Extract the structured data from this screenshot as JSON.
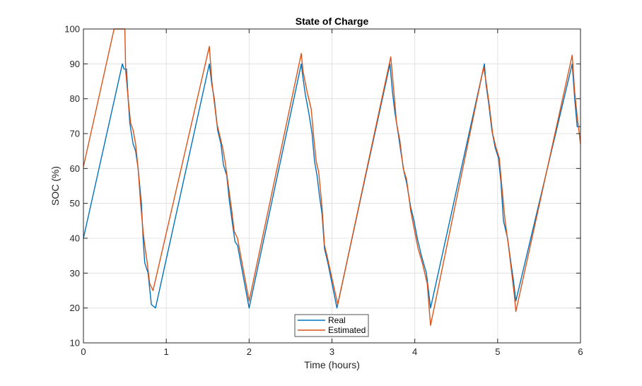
{
  "chart_data": {
    "type": "line",
    "title": "State of Charge",
    "xlabel": "Time (hours)",
    "ylabel": "SOC (%)",
    "xlim": [
      0,
      6
    ],
    "ylim": [
      10,
      100
    ],
    "xticks": [
      0,
      1,
      2,
      3,
      4,
      5,
      6
    ],
    "yticks": [
      10,
      20,
      30,
      40,
      50,
      60,
      70,
      80,
      90,
      100
    ],
    "grid": true,
    "legend_position": "bottom-center",
    "series": [
      {
        "name": "Real",
        "color": "#0072BD",
        "points": [
          [
            0,
            40
          ],
          [
            0.47,
            90
          ],
          [
            0.49,
            88.5
          ],
          [
            0.52,
            88.5
          ],
          [
            0.54,
            80
          ],
          [
            0.56,
            73
          ],
          [
            0.6,
            67
          ],
          [
            0.63,
            65
          ],
          [
            0.66,
            60
          ],
          [
            0.7,
            50
          ],
          [
            0.72,
            40
          ],
          [
            0.74,
            33
          ],
          [
            0.78,
            30
          ],
          [
            0.82,
            21
          ],
          [
            0.87,
            20
          ],
          [
            1.52,
            90
          ],
          [
            1.55,
            84
          ],
          [
            1.58,
            80
          ],
          [
            1.62,
            71
          ],
          [
            1.66,
            67
          ],
          [
            1.69,
            61
          ],
          [
            1.73,
            58
          ],
          [
            1.76,
            51
          ],
          [
            1.8,
            44
          ],
          [
            1.83,
            39
          ],
          [
            1.86,
            38
          ],
          [
            2.0,
            20
          ],
          [
            2.63,
            90
          ],
          [
            2.65,
            86
          ],
          [
            2.68,
            81
          ],
          [
            2.72,
            76
          ],
          [
            2.76,
            70
          ],
          [
            2.79,
            62
          ],
          [
            2.82,
            58
          ],
          [
            2.85,
            52
          ],
          [
            2.88,
            47
          ],
          [
            2.91,
            37
          ],
          [
            2.95,
            33
          ],
          [
            3.06,
            20
          ],
          [
            3.7,
            90
          ],
          [
            3.73,
            82
          ],
          [
            3.76,
            76
          ],
          [
            3.8,
            70
          ],
          [
            3.83,
            65
          ],
          [
            3.87,
            59
          ],
          [
            3.9,
            56
          ],
          [
            3.95,
            49
          ],
          [
            3.99,
            45
          ],
          [
            4.03,
            40
          ],
          [
            4.08,
            35
          ],
          [
            4.14,
            30
          ],
          [
            4.19,
            20
          ],
          [
            4.84,
            90
          ],
          [
            4.86,
            84
          ],
          [
            4.89,
            79
          ],
          [
            4.93,
            71
          ],
          [
            4.97,
            66
          ],
          [
            5.01,
            63
          ],
          [
            5.04,
            56
          ],
          [
            5.07,
            45
          ],
          [
            5.12,
            40
          ],
          [
            5.16,
            33
          ],
          [
            5.19,
            28
          ],
          [
            5.22,
            22
          ],
          [
            5.9,
            90
          ],
          [
            5.93,
            80
          ],
          [
            5.96,
            72
          ],
          [
            6.0,
            72
          ]
        ]
      },
      {
        "name": "Estimated",
        "color": "#D95319",
        "points": [
          [
            0,
            60.5
          ],
          [
            0.37,
            100
          ],
          [
            0.5,
            100
          ],
          [
            0.51,
            88
          ],
          [
            0.54,
            80
          ],
          [
            0.57,
            73
          ],
          [
            0.6,
            71
          ],
          [
            0.63,
            67
          ],
          [
            0.66,
            60
          ],
          [
            0.69,
            50
          ],
          [
            0.72,
            42
          ],
          [
            0.74,
            38
          ],
          [
            0.77,
            33
          ],
          [
            0.8,
            27
          ],
          [
            0.84,
            25
          ],
          [
            1.52,
            95
          ],
          [
            1.55,
            85
          ],
          [
            1.58,
            79
          ],
          [
            1.61,
            73
          ],
          [
            1.65,
            69
          ],
          [
            1.68,
            66
          ],
          [
            1.71,
            62
          ],
          [
            1.75,
            55
          ],
          [
            1.79,
            48
          ],
          [
            1.82,
            42
          ],
          [
            1.86,
            40
          ],
          [
            2.0,
            22
          ],
          [
            2.63,
            93
          ],
          [
            2.65,
            88
          ],
          [
            2.7,
            82
          ],
          [
            2.75,
            77
          ],
          [
            2.78,
            69
          ],
          [
            2.81,
            62
          ],
          [
            2.84,
            59
          ],
          [
            2.88,
            49
          ],
          [
            2.91,
            38
          ],
          [
            2.94,
            35
          ],
          [
            3.07,
            21
          ],
          [
            3.71,
            92
          ],
          [
            3.74,
            84
          ],
          [
            3.78,
            73
          ],
          [
            3.82,
            68
          ],
          [
            3.86,
            60
          ],
          [
            3.9,
            57
          ],
          [
            3.95,
            48
          ],
          [
            3.99,
            43
          ],
          [
            4.04,
            37
          ],
          [
            4.09,
            33
          ],
          [
            4.15,
            27
          ],
          [
            4.19,
            15
          ],
          [
            4.83,
            89
          ],
          [
            4.86,
            85
          ],
          [
            4.9,
            78
          ],
          [
            4.94,
            70
          ],
          [
            4.98,
            66
          ],
          [
            5.02,
            63
          ],
          [
            5.05,
            55
          ],
          [
            5.09,
            45
          ],
          [
            5.13,
            38
          ],
          [
            5.17,
            30
          ],
          [
            5.2,
            24
          ],
          [
            5.22,
            19
          ],
          [
            5.9,
            92.5
          ],
          [
            5.93,
            82
          ],
          [
            5.96,
            75
          ],
          [
            6.0,
            67
          ]
        ]
      }
    ]
  }
}
